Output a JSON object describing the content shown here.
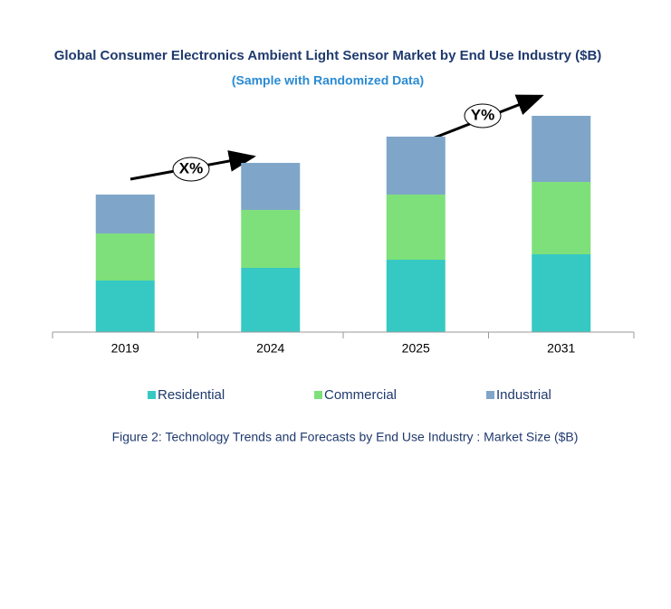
{
  "chart_data": {
    "type": "stacked_bar",
    "title": "Global Consumer Electronics Ambient Light Sensor Market by End Use Industry ($B)",
    "subtitle": "(Sample with Randomized Data)",
    "categories": [
      "2019",
      "2024",
      "2025",
      "2031"
    ],
    "series": [
      {
        "name": "Residential",
        "color": "#36c9c4",
        "values": [
          57,
          71,
          80,
          86
        ]
      },
      {
        "name": "Commercial",
        "color": "#7ee07a",
        "values": [
          52,
          64,
          72,
          80
        ]
      },
      {
        "name": "Industrial",
        "color": "#7fa6c9",
        "values": [
          43,
          52,
          64,
          73
        ]
      }
    ],
    "ylim": [
      0,
      260
    ],
    "annotations": [
      "X%",
      "Y%"
    ],
    "caption": "Figure 2: Technology  Trends  and Forecasts by End Use Industry  : Market Size ($B)"
  }
}
